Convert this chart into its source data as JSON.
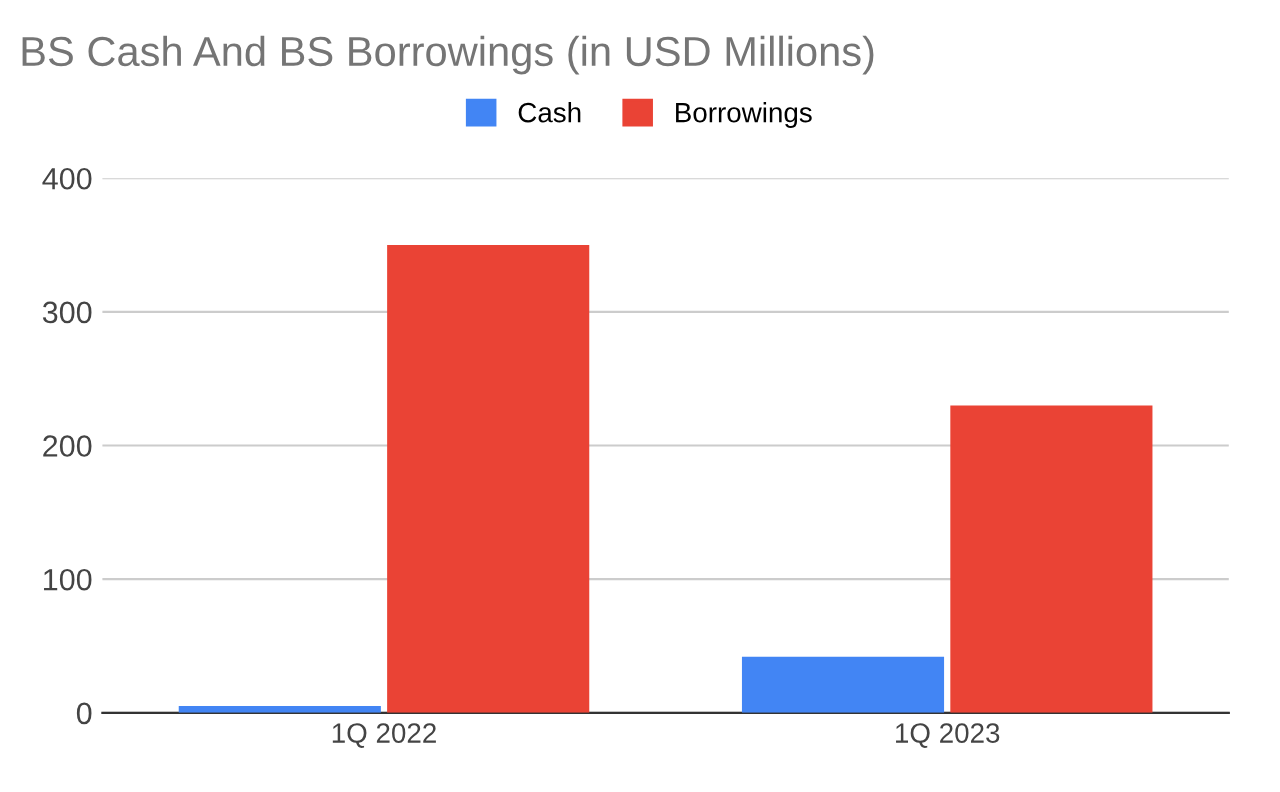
{
  "chart_data": {
    "type": "bar",
    "title": "BS Cash And BS Borrowings (in USD Millions)",
    "categories": [
      "1Q 2022",
      "1Q 2023"
    ],
    "series": [
      {
        "name": "Cash",
        "color": "#4285f4",
        "values": [
          5,
          42
        ]
      },
      {
        "name": "Borrowings",
        "color": "#ea4335",
        "values": [
          350,
          230
        ]
      }
    ],
    "ylim": [
      0,
      400
    ],
    "yticks": [
      0,
      100,
      200,
      300,
      400
    ],
    "grid": "y",
    "legend": "top"
  }
}
